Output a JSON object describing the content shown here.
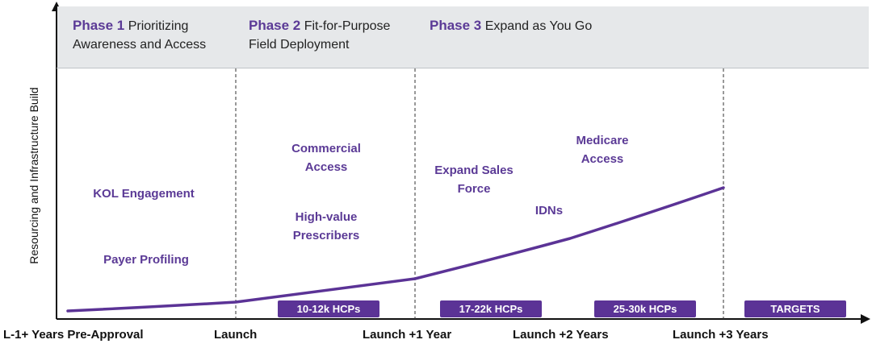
{
  "y_axis_label": "Resourcing and Infrastructure Build",
  "phases": [
    {
      "name": "Phase 1",
      "line1": "Prioritizing",
      "line2": "Awareness and Access"
    },
    {
      "name": "Phase 2",
      "line1": "Fit-for-Purpose",
      "line2": "Field Deployment"
    },
    {
      "name": "Phase 3",
      "line1": "Expand as You Go",
      "line2": ""
    }
  ],
  "items": [
    {
      "line1": "KOL Engagement",
      "line2": ""
    },
    {
      "line1": "Payer Profiling",
      "line2": ""
    },
    {
      "line1": "Commercial",
      "line2": "Access"
    },
    {
      "line1": "High-value",
      "line2": "Prescribers"
    },
    {
      "line1": "Expand Sales",
      "line2": "Force"
    },
    {
      "line1": "Medicare",
      "line2": "Access"
    },
    {
      "line1": "IDNs",
      "line2": ""
    }
  ],
  "badges": [
    "10-12k HCPs",
    "17-22k HCPs",
    "25-30k HCPs",
    "TARGETS"
  ],
  "x_ticks": [
    "L-1+ Years Pre-Approval",
    "Launch",
    "Launch +1 Year",
    "Launch +2 Years",
    "Launch +3 Years"
  ],
  "colors": {
    "accent": "#5b3a96",
    "banner": "#e6e8ea",
    "axis": "#111111"
  }
}
